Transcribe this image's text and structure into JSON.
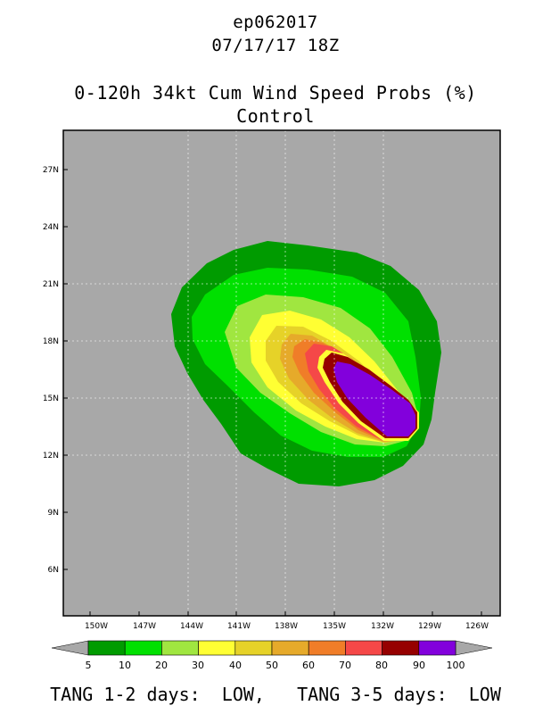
{
  "header": {
    "storm_id": "ep062017",
    "datetime": "07/17/17 18Z",
    "product": "0-120h 34kt Cum Wind Speed Probs (%)",
    "run": "Control"
  },
  "map": {
    "background_color": "#a8a8a8",
    "lon_labels": [
      "150W",
      "147W",
      "144W",
      "141W",
      "138W",
      "135W",
      "132W",
      "129W",
      "126W"
    ],
    "lat_labels": [
      "27N",
      "24N",
      "21N",
      "18N",
      "15N",
      "12N",
      "9N",
      "6N"
    ]
  },
  "colorbar": {
    "levels": [
      "5",
      "10",
      "20",
      "30",
      "40",
      "50",
      "60",
      "70",
      "80",
      "90",
      "100"
    ],
    "colors": [
      "#009b00",
      "#00e000",
      "#a0e640",
      "#ffff33",
      "#e6d228",
      "#e6aa2a",
      "#f07d28",
      "#f54848",
      "#960000",
      "#8200dc"
    ],
    "end_color": "#a8a8a8"
  },
  "footer": {
    "tang_short_label": "TANG 1-2 days:",
    "tang_short_value": "LOW,",
    "tang_long_label": "TANG 3-5 days:",
    "tang_long_value": "LOW"
  }
}
